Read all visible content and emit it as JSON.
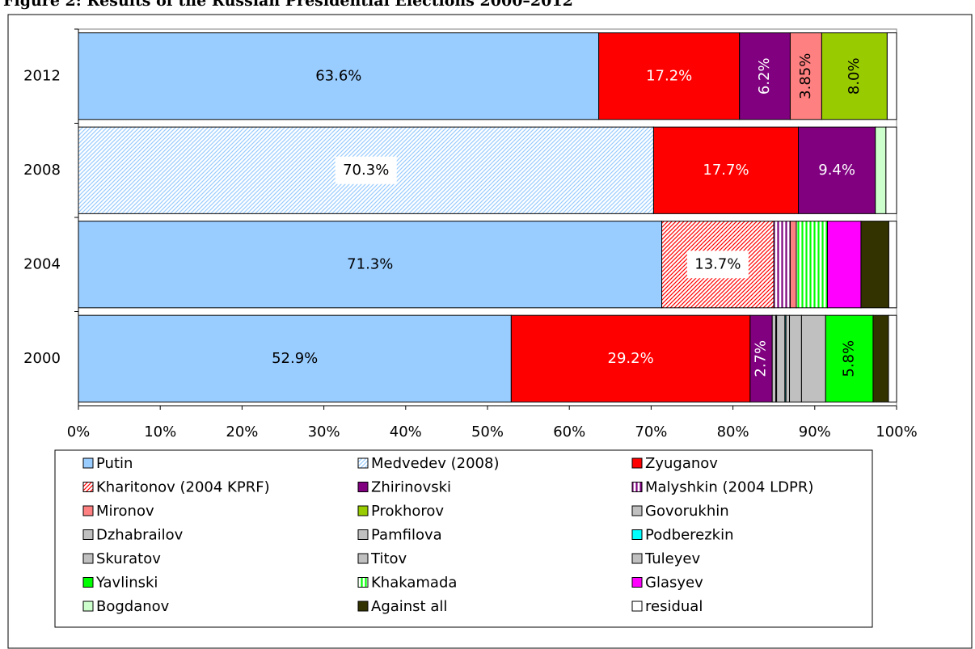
{
  "chart_data": {
    "type": "stacked_bar_horizontal_percent",
    "title": "Figure 2: Results of the Russian Presidential Elections 2000–2012",
    "categories": [
      "2012",
      "2008",
      "2004",
      "2000"
    ],
    "xlim": [
      0,
      100
    ],
    "xticks": [
      {
        "value": 0,
        "label": "0%"
      },
      {
        "value": 10,
        "label": "10%"
      },
      {
        "value": 20,
        "label": "20%"
      },
      {
        "value": 30,
        "label": "30%"
      },
      {
        "value": 40,
        "label": "40%"
      },
      {
        "value": 50,
        "label": "50%"
      },
      {
        "value": 60,
        "label": "60%"
      },
      {
        "value": 70,
        "label": "70%"
      },
      {
        "value": 80,
        "label": "80%"
      },
      {
        "value": 90,
        "label": "90%"
      },
      {
        "value": 100,
        "label": "100%"
      }
    ],
    "legend": "bottom",
    "series": [
      {
        "name": "Putin",
        "color": "#99ccff",
        "values": [
          63.6,
          null,
          71.3,
          52.9
        ],
        "value_labels": [
          "63.6%",
          null,
          "71.3%",
          "52.9%"
        ]
      },
      {
        "name": "Medvedev (2008)",
        "color": "#99ccff",
        "pattern": "hatch",
        "values": [
          null,
          70.3,
          null,
          null
        ],
        "value_labels": [
          null,
          "70.3%",
          null,
          null
        ]
      },
      {
        "name": "Zyuganov",
        "color": "#ff0000",
        "values": [
          17.2,
          17.7,
          null,
          29.2
        ],
        "value_labels": [
          "17.2%",
          "17.7%",
          null,
          "29.2%"
        ]
      },
      {
        "name": "Kharitonov (2004 KPRF)",
        "color": "#ff0000",
        "pattern": "hatch",
        "values": [
          null,
          null,
          13.7,
          null
        ],
        "value_labels": [
          null,
          null,
          "13.7%",
          null
        ]
      },
      {
        "name": "Zhirinovski",
        "color": "#800080",
        "values": [
          6.2,
          9.4,
          null,
          2.7
        ],
        "value_labels": [
          "6.2%",
          "9.4%",
          null,
          "2.7%"
        ]
      },
      {
        "name": "Malyshkin (2004 LDPR)",
        "color": "#800080",
        "pattern": "stripes",
        "values": [
          null,
          null,
          2.0,
          null
        ]
      },
      {
        "name": "Mironov",
        "color": "#ff8080",
        "values": [
          3.85,
          null,
          0.75,
          null
        ],
        "value_labels": [
          "3.85%",
          null,
          null,
          null
        ]
      },
      {
        "name": "Prokhorov",
        "color": "#99cc00",
        "values": [
          8.0,
          null,
          null,
          null
        ],
        "value_labels": [
          "8.0%",
          null,
          null,
          null
        ]
      },
      {
        "name": "Govorukhin",
        "color": "#c0c0c0",
        "values": [
          null,
          null,
          null,
          0.44
        ]
      },
      {
        "name": "Dzhabrailov",
        "color": "#c0c0c0",
        "values": [
          null,
          null,
          null,
          0.1
        ]
      },
      {
        "name": "Pamfilova",
        "color": "#c0c0c0",
        "values": [
          null,
          null,
          null,
          1.01
        ]
      },
      {
        "name": "Podberezkin",
        "color": "#00ffff",
        "values": [
          null,
          null,
          null,
          0.13
        ]
      },
      {
        "name": "Skuratov",
        "color": "#c0c0c0",
        "values": [
          null,
          null,
          null,
          0.43
        ]
      },
      {
        "name": "Titov",
        "color": "#c0c0c0",
        "values": [
          null,
          null,
          null,
          1.47
        ]
      },
      {
        "name": "Tuleyev",
        "color": "#c0c0c0",
        "values": [
          null,
          null,
          null,
          2.95
        ]
      },
      {
        "name": "Yavlinski",
        "color": "#00ff00",
        "values": [
          null,
          null,
          null,
          5.8
        ],
        "value_labels": [
          null,
          null,
          null,
          "5.8%"
        ]
      },
      {
        "name": "Khakamada",
        "color": "#00ff00",
        "pattern": "stripes",
        "values": [
          null,
          null,
          3.8,
          null
        ]
      },
      {
        "name": "Glasyev",
        "color": "#ff00ff",
        "values": [
          null,
          null,
          4.1,
          null
        ]
      },
      {
        "name": "Bogdanov",
        "color": "#ccffcc",
        "values": [
          null,
          1.3,
          null,
          null
        ]
      },
      {
        "name": "Against all",
        "color": "#333300",
        "values": [
          null,
          null,
          3.4,
          1.88
        ]
      },
      {
        "name": "residual",
        "color": "#ffffff",
        "values": [
          1.15,
          1.3,
          0.95,
          0.99
        ]
      }
    ]
  }
}
